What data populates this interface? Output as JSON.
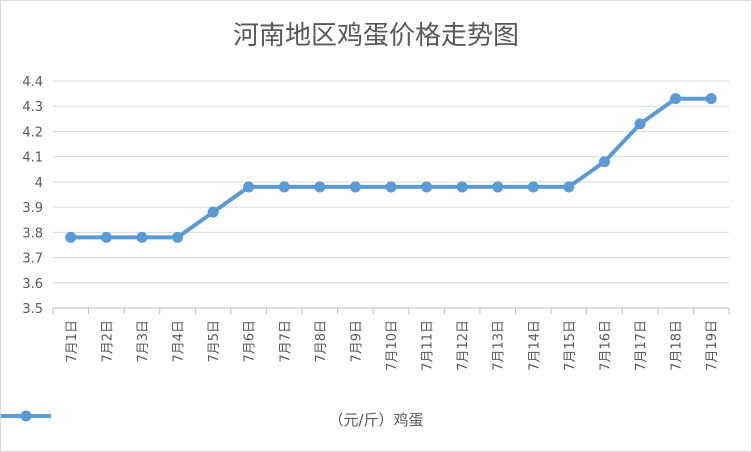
{
  "chart_data": {
    "type": "line",
    "title": "河南地区鸡蛋价格走势图",
    "categories": [
      "7月1日",
      "7月2日",
      "7月3日",
      "7月4日",
      "7月5日",
      "7月6日",
      "7月7日",
      "7月8日",
      "7月9日",
      "7月10日",
      "7月11日",
      "7月12日",
      "7月13日",
      "7月14日",
      "7月15日",
      "7月16日",
      "7月17日",
      "7月18日",
      "7月19日"
    ],
    "series": [
      {
        "name": "（元/斤）鸡蛋",
        "values": [
          3.78,
          3.78,
          3.78,
          3.78,
          3.88,
          3.98,
          3.98,
          3.98,
          3.98,
          3.98,
          3.98,
          3.98,
          3.98,
          3.98,
          3.98,
          4.08,
          4.23,
          4.33,
          4.33
        ]
      }
    ],
    "ylim": [
      3.5,
      4.4
    ],
    "yticks": [
      "3.5",
      "3.6",
      "3.7",
      "3.8",
      "3.9",
      "4",
      "4.1",
      "4.2",
      "4.3",
      "4.4"
    ],
    "xlabel": "",
    "ylabel": "",
    "grid": true,
    "legend": "bottom",
    "line_color": "#5b9bd5",
    "grid_color": "#d9d9d9"
  }
}
